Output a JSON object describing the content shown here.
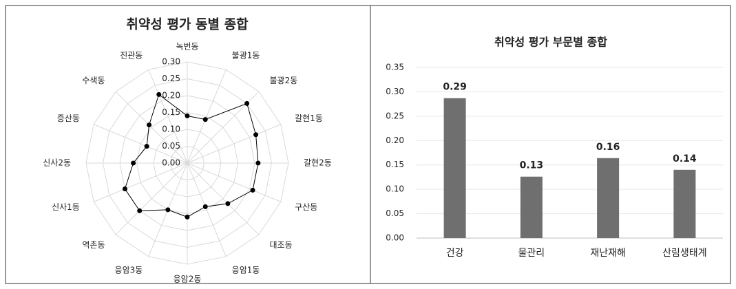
{
  "chart_data": [
    {
      "type": "radar",
      "title": "취약성 평가 동별 종합",
      "categories": [
        "녹번동",
        "불광1동",
        "불광2동",
        "갈현1동",
        "갈현2동",
        "구산동",
        "대조동",
        "응암1동",
        "응암2동",
        "응암3동",
        "역촌동",
        "신사1동",
        "신사2동",
        "증산동",
        "수색동",
        "진관동"
      ],
      "values": [
        0.14,
        0.14,
        0.25,
        0.22,
        0.21,
        0.21,
        0.17,
        0.14,
        0.16,
        0.15,
        0.2,
        0.2,
        0.16,
        0.13,
        0.16,
        0.22
      ],
      "color": "#000000",
      "ylim": [
        0,
        0.3
      ],
      "yticks": [
        {
          "value": 0,
          "label": "0.00"
        },
        {
          "value": 0.05,
          "label": "0.05"
        },
        {
          "value": 0.1,
          "label": "0.10"
        },
        {
          "value": 0.15,
          "label": "0.15"
        },
        {
          "value": 0.2,
          "label": "0.20"
        },
        {
          "value": 0.25,
          "label": "0.25"
        },
        {
          "value": 0.3,
          "label": "0.30"
        }
      ],
      "grid": true
    },
    {
      "type": "bar",
      "title": "취약성 평가 부문별 종합",
      "categories": [
        "건강",
        "물관리",
        "재난재해",
        "산림생태계"
      ],
      "values": [
        0.287,
        0.126,
        0.164,
        0.14
      ],
      "value_labels": [
        "0.29",
        "0.13",
        "0.16",
        "0.14"
      ],
      "color": "#6f6f6f",
      "ylim": [
        0,
        0.35
      ],
      "yticks": [
        {
          "value": 0,
          "label": "0.00"
        },
        {
          "value": 0.05,
          "label": "0.05"
        },
        {
          "value": 0.1,
          "label": "0.10"
        },
        {
          "value": 0.15,
          "label": "0.15"
        },
        {
          "value": 0.2,
          "label": "0.20"
        },
        {
          "value": 0.25,
          "label": "0.25"
        },
        {
          "value": 0.3,
          "label": "0.30"
        },
        {
          "value": 0.35,
          "label": "0.35"
        }
      ],
      "grid": true
    }
  ]
}
